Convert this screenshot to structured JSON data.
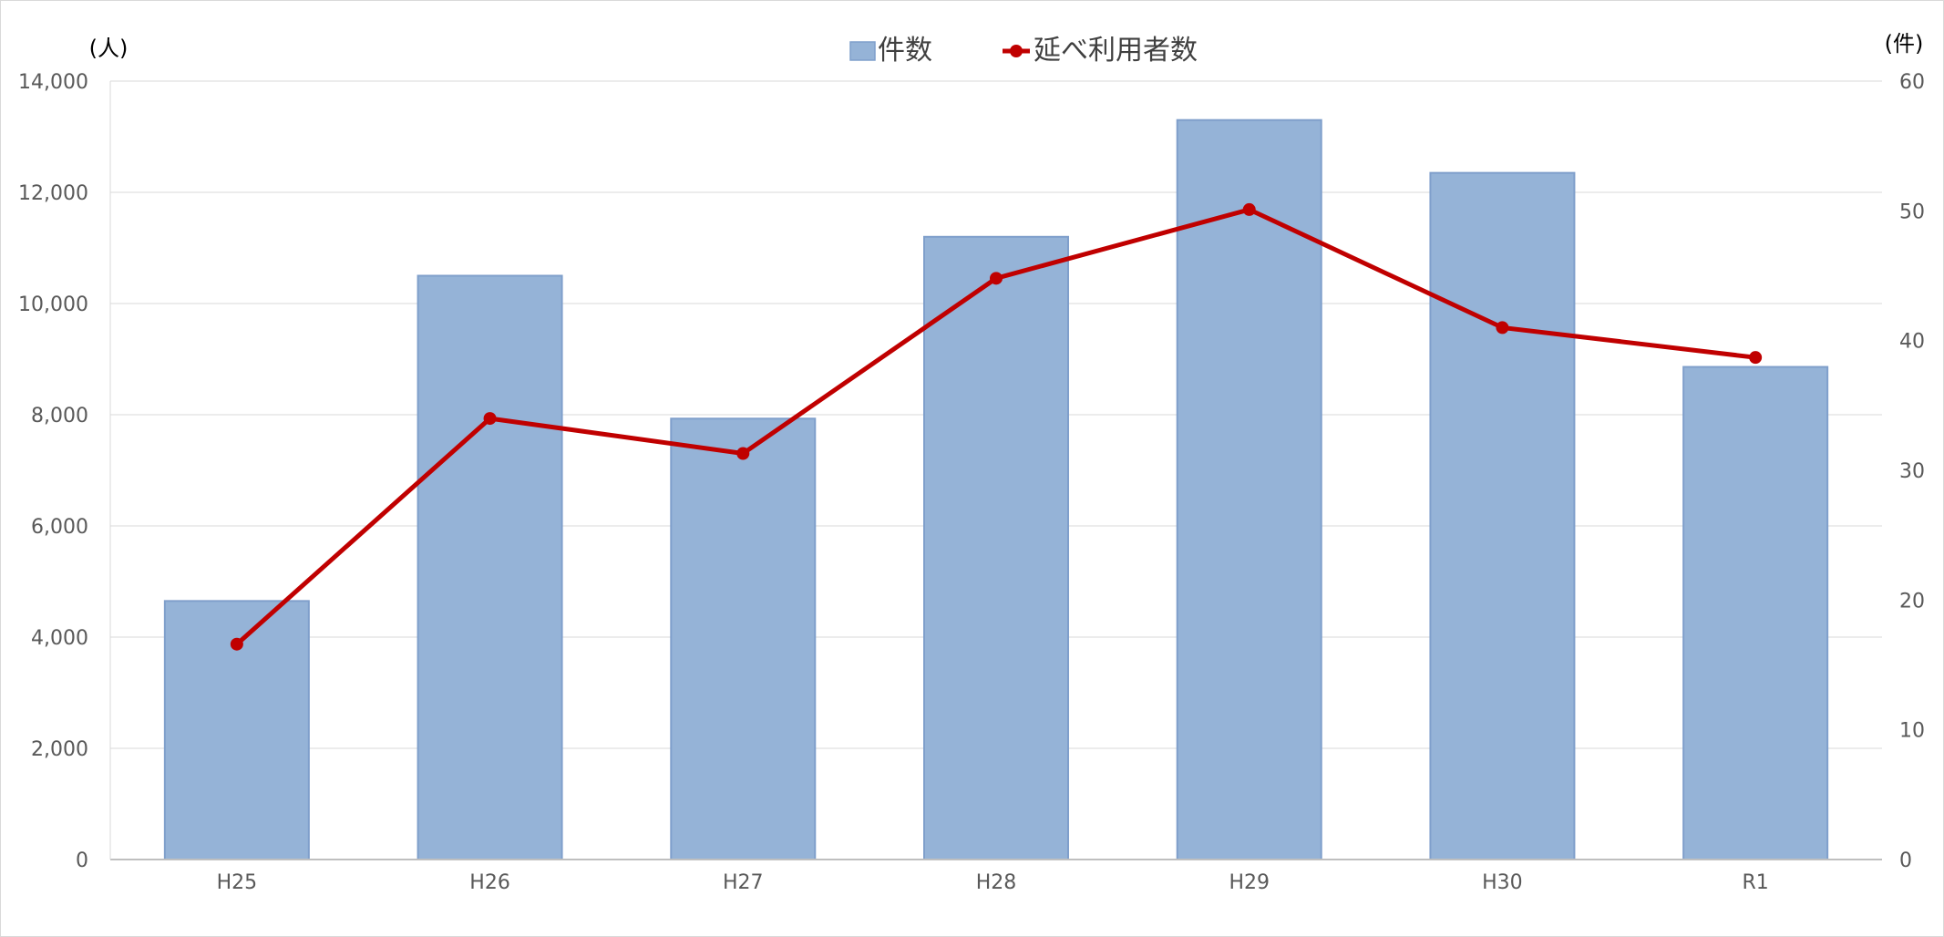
{
  "chart_data": {
    "type": "bar",
    "categories": [
      "H25",
      "H26",
      "H27",
      "H28",
      "H29",
      "H30",
      "R1"
    ],
    "series": [
      {
        "name": "件数",
        "type": "bar",
        "axis": "left",
        "values": [
          4650,
          10500,
          7930,
          11200,
          13300,
          12350,
          8860
        ],
        "color": "#95b3d7"
      },
      {
        "name": "延べ利用者数",
        "type": "line",
        "axis": "right",
        "values": [
          16.6,
          34.0,
          31.3,
          44.8,
          50.1,
          41.0,
          38.7
        ],
        "color": "#c00000"
      }
    ],
    "y_left": {
      "unit": "(人)",
      "min": 0,
      "max": 14000,
      "ticks": [
        "0",
        "2,000",
        "4,000",
        "6,000",
        "8,000",
        "10,000",
        "12,000",
        "14,000"
      ]
    },
    "y_right": {
      "unit": "(件)",
      "min": 0,
      "max": 60,
      "ticks": [
        "0",
        "10",
        "20",
        "30",
        "40",
        "50",
        "60"
      ]
    },
    "grid": true,
    "legend_position": "top-center"
  }
}
